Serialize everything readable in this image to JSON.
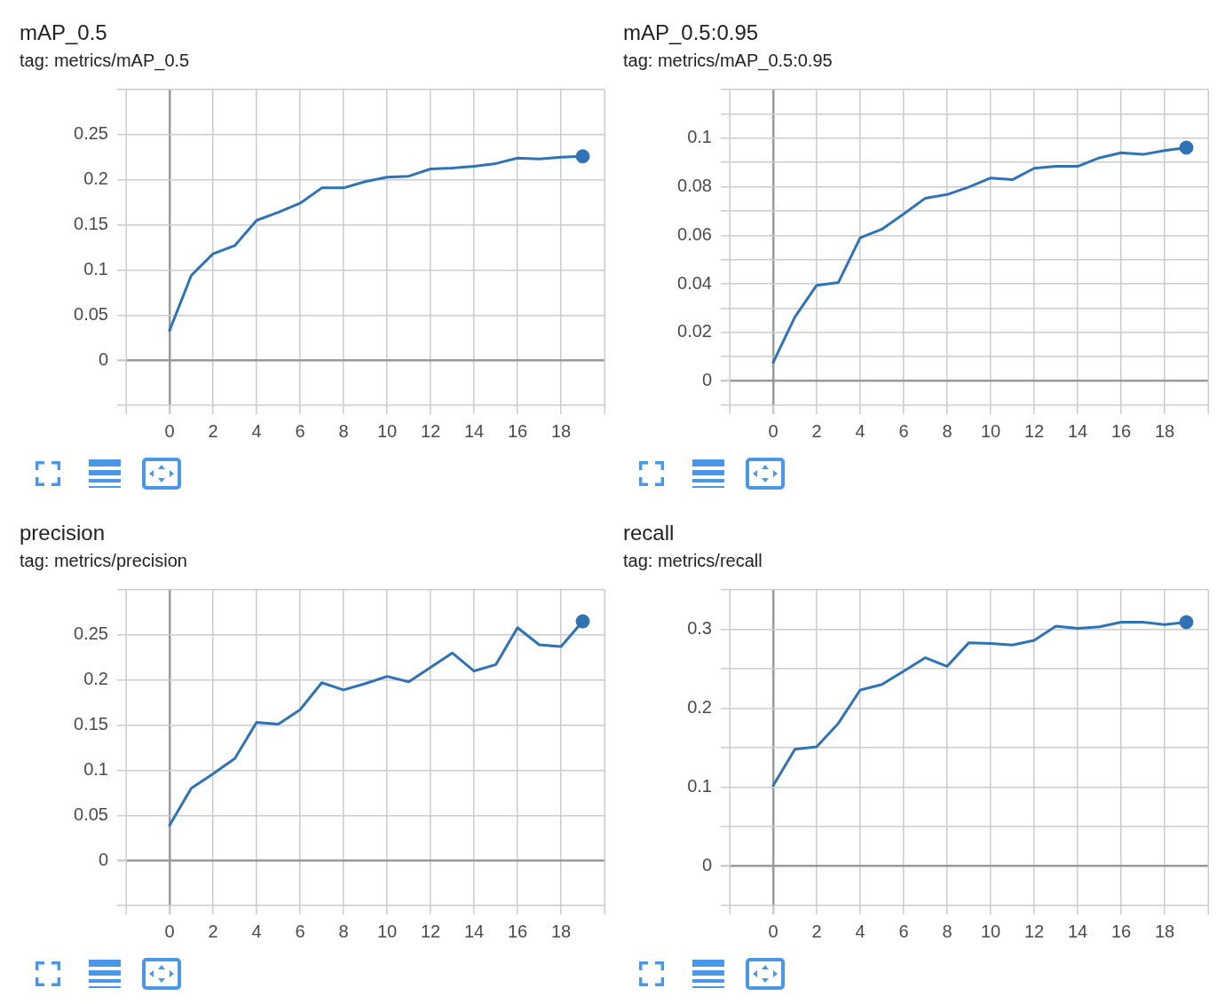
{
  "chart_data": [
    {
      "type": "line",
      "title": "mAP_0.5",
      "subtitle": "tag: metrics/mAP_0.5",
      "x": [
        0,
        1,
        2,
        3,
        4,
        5,
        6,
        7,
        8,
        9,
        10,
        11,
        12,
        13,
        14,
        15,
        16,
        17,
        18,
        19
      ],
      "xlim": [
        -2,
        20
      ],
      "xticks": [
        0,
        2,
        4,
        6,
        8,
        10,
        12,
        14,
        16,
        18
      ],
      "ylim": [
        -0.05,
        0.3
      ],
      "yticks": [
        {
          "value": -0.05,
          "label": null
        },
        0,
        0.05,
        0.1,
        0.15,
        0.2,
        0.25,
        {
          "value": 0.3,
          "label": null
        }
      ],
      "grid": true,
      "series": [
        {
          "type": "line",
          "color": "#3073b5",
          "marker": "none",
          "line_style": "solid",
          "values": [
            0.033,
            0.094,
            0.118,
            0.127,
            0.155,
            0.164,
            0.174,
            0.191,
            0.191,
            0.198,
            0.203,
            0.204,
            0.212,
            0.213,
            0.215,
            0.218,
            0.224,
            0.223,
            0.225,
            0.226
          ]
        },
        {
          "type": "scatter",
          "color": "#3073b5",
          "marker": "circle",
          "values": [
            null,
            null,
            null,
            null,
            null,
            null,
            null,
            null,
            null,
            null,
            null,
            null,
            null,
            null,
            null,
            null,
            null,
            null,
            null,
            0.226
          ]
        }
      ]
    },
    {
      "type": "line",
      "title": "mAP_0.5:0.95",
      "subtitle": "tag: metrics/mAP_0.5:0.95",
      "x": [
        0,
        1,
        2,
        3,
        4,
        5,
        6,
        7,
        8,
        9,
        10,
        11,
        12,
        13,
        14,
        15,
        16,
        17,
        18,
        19
      ],
      "xlim": [
        -2,
        20
      ],
      "xticks": [
        0,
        2,
        4,
        6,
        8,
        10,
        12,
        14,
        16,
        18
      ],
      "ylim": [
        -0.01,
        0.12
      ],
      "yticks": [
        {
          "value": -0.01,
          "label": null
        },
        0,
        {
          "value": 0.01,
          "label": null
        },
        0.02,
        {
          "value": 0.03,
          "label": null
        },
        0.04,
        {
          "value": 0.05,
          "label": null
        },
        0.06,
        {
          "value": 0.07,
          "label": null
        },
        0.08,
        {
          "value": 0.09,
          "label": null
        },
        0.1,
        {
          "value": 0.11,
          "label": null
        },
        {
          "value": 0.12,
          "label": null
        }
      ],
      "grid": true,
      "series": [
        {
          "type": "line",
          "color": "#3073b5",
          "marker": "none",
          "line_style": "solid",
          "values": [
            0.0077,
            0.0264,
            0.0394,
            0.0406,
            0.059,
            0.0625,
            0.0688,
            0.0753,
            0.0768,
            0.0799,
            0.0836,
            0.0829,
            0.0876,
            0.0884,
            0.0884,
            0.0919,
            0.094,
            0.0933,
            0.0949,
            0.0961
          ]
        },
        {
          "type": "scatter",
          "color": "#3073b5",
          "marker": "circle",
          "values": [
            null,
            null,
            null,
            null,
            null,
            null,
            null,
            null,
            null,
            null,
            null,
            null,
            null,
            null,
            null,
            null,
            null,
            null,
            null,
            0.0961
          ]
        }
      ]
    },
    {
      "type": "line",
      "title": "precision",
      "subtitle": "tag: metrics/precision",
      "x": [
        0,
        1,
        2,
        3,
        4,
        5,
        6,
        7,
        8,
        9,
        10,
        11,
        12,
        13,
        14,
        15,
        16,
        17,
        18,
        19
      ],
      "xlim": [
        -2,
        20
      ],
      "xticks": [
        0,
        2,
        4,
        6,
        8,
        10,
        12,
        14,
        16,
        18
      ],
      "ylim": [
        -0.05,
        0.3
      ],
      "yticks": [
        {
          "value": -0.05,
          "label": null
        },
        0,
        0.05,
        0.1,
        0.15,
        0.2,
        0.25,
        {
          "value": 0.3,
          "label": null
        }
      ],
      "grid": true,
      "series": [
        {
          "type": "line",
          "color": "#3073b5",
          "marker": "none",
          "line_style": "solid",
          "values": [
            0.039,
            0.08,
            0.096,
            0.113,
            0.153,
            0.151,
            0.167,
            0.197,
            0.189,
            0.196,
            0.204,
            0.198,
            0.214,
            0.23,
            0.21,
            0.217,
            0.258,
            0.239,
            0.237,
            0.265
          ]
        },
        {
          "type": "scatter",
          "color": "#3073b5",
          "marker": "circle",
          "values": [
            null,
            null,
            null,
            null,
            null,
            null,
            null,
            null,
            null,
            null,
            null,
            null,
            null,
            null,
            null,
            null,
            null,
            null,
            null,
            0.265
          ]
        }
      ]
    },
    {
      "type": "line",
      "title": "recall",
      "subtitle": "tag: metrics/recall",
      "x": [
        0,
        1,
        2,
        3,
        4,
        5,
        6,
        7,
        8,
        9,
        10,
        11,
        12,
        13,
        14,
        15,
        16,
        17,
        18,
        19
      ],
      "xlim": [
        -2,
        20
      ],
      "xticks": [
        0,
        2,
        4,
        6,
        8,
        10,
        12,
        14,
        16,
        18
      ],
      "ylim": [
        -0.05,
        0.35
      ],
      "yticks": [
        {
          "value": -0.05,
          "label": null
        },
        0,
        {
          "value": 0.05,
          "label": null
        },
        0.1,
        {
          "value": 0.15,
          "label": null
        },
        0.2,
        {
          "value": 0.25,
          "label": null
        },
        0.3,
        {
          "value": 0.35,
          "label": null
        }
      ],
      "grid": true,
      "series": [
        {
          "type": "line",
          "color": "#3073b5",
          "marker": "none",
          "line_style": "solid",
          "values": [
            0.102,
            0.148,
            0.151,
            0.181,
            0.223,
            0.23,
            0.247,
            0.264,
            0.253,
            0.283,
            0.282,
            0.28,
            0.286,
            0.304,
            0.301,
            0.303,
            0.309,
            0.309,
            0.306,
            0.309
          ]
        },
        {
          "type": "scatter",
          "color": "#3073b5",
          "marker": "circle",
          "values": [
            null,
            null,
            null,
            null,
            null,
            null,
            null,
            null,
            null,
            null,
            null,
            null,
            null,
            null,
            null,
            null,
            null,
            null,
            null,
            0.309
          ]
        }
      ]
    }
  ]
}
